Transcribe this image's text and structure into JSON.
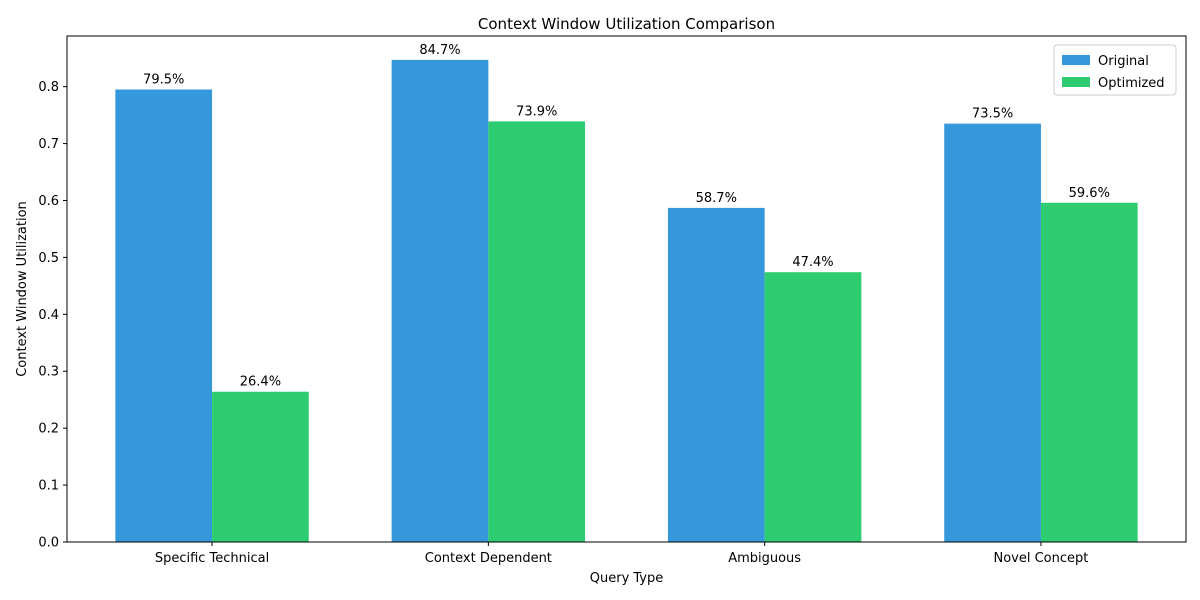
{
  "chart_data": {
    "type": "bar",
    "title": "Context Window Utilization Comparison",
    "xlabel": "Query Type",
    "ylabel": "Context Window Utilization",
    "categories": [
      "Specific Technical",
      "Context Dependent",
      "Ambiguous",
      "Novel Concept"
    ],
    "series": [
      {
        "name": "Original",
        "color": "#3498db",
        "values": [
          0.795,
          0.847,
          0.587,
          0.735
        ],
        "labels": [
          "79.5%",
          "84.7%",
          "58.7%",
          "73.5%"
        ]
      },
      {
        "name": "Optimized",
        "color": "#2ecc71",
        "values": [
          0.264,
          0.739,
          0.474,
          0.596
        ],
        "labels": [
          "26.4%",
          "73.9%",
          "47.4%",
          "59.6%"
        ]
      }
    ],
    "ylim": [
      0,
      0.889
    ],
    "yticks": [
      0.0,
      0.1,
      0.2,
      0.3,
      0.4,
      0.5,
      0.6,
      0.7,
      0.8
    ],
    "ytick_labels": [
      "0.0",
      "0.1",
      "0.2",
      "0.3",
      "0.4",
      "0.5",
      "0.6",
      "0.7",
      "0.8"
    ],
    "grid": false,
    "legend_position": "top-right"
  }
}
